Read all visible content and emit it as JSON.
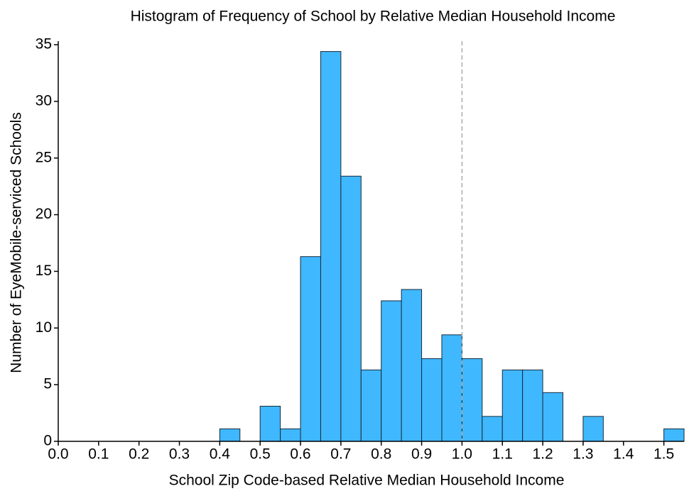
{
  "chart_data": {
    "type": "histogram",
    "title": "Histogram of Frequency of School by Relative Median Household Income",
    "x_label": "School Zip Code-based Relative Median Household Income",
    "y_label": "Number of EyeMobile-serviced Schools",
    "bins": [
      0,
      0.05,
      0.1,
      0.15,
      0.2,
      0.25,
      0.3,
      0.35,
      0.4,
      0.45,
      0.5,
      0.55,
      0.6,
      0.65,
      0.7,
      0.75,
      0.8,
      0.85,
      0.9,
      0.95,
      1.0,
      1.05,
      1.1,
      1.15,
      1.2,
      1.25,
      1.3,
      1.35,
      1.4,
      1.45,
      1.5,
      1.55
    ],
    "values": [
      0,
      0,
      0,
      0,
      0,
      0,
      0,
      0,
      1.1,
      0,
      3.1,
      1.1,
      16.3,
      34.4,
      23.4,
      6.3,
      12.4,
      13.4,
      7.3,
      9.4,
      7.3,
      2.2,
      6.3,
      6.3,
      4.3,
      0,
      2.2,
      0,
      0,
      0,
      1.1
    ],
    "color": "#3fb8ff",
    "reference_line_x": 1.0,
    "xlim": [
      0,
      1.55
    ],
    "ylim": [
      0,
      35
    ],
    "xticks": [
      {
        "value": 0,
        "label": "0.0"
      },
      0.1,
      0.2,
      0.3,
      0.4,
      0.5,
      0.6,
      0.7,
      0.8,
      0.9,
      {
        "value": 1,
        "label": "1.0"
      },
      1.1,
      1.2,
      1.3,
      1.4,
      1.5
    ],
    "yticks": [
      0,
      5,
      10,
      15,
      20,
      25,
      30,
      35
    ]
  }
}
